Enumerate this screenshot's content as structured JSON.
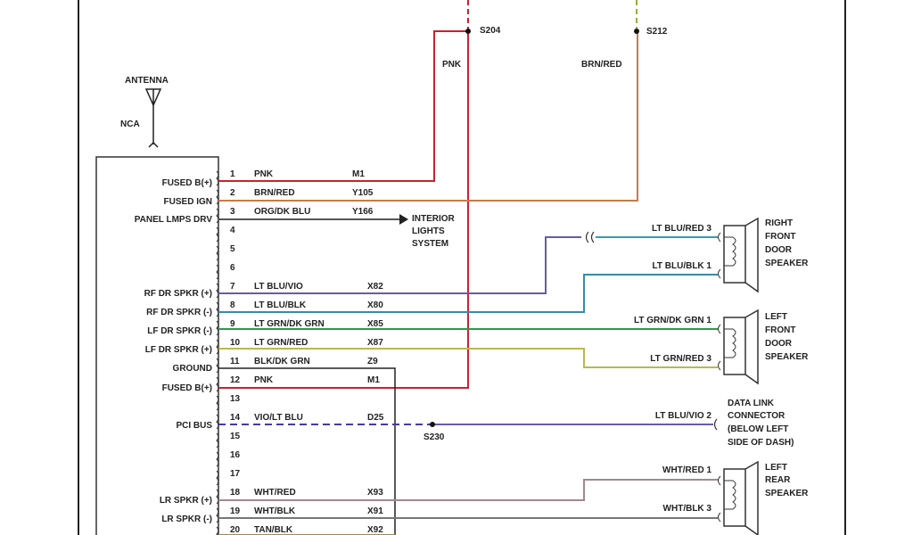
{
  "splices": {
    "s204": "S204",
    "s212": "S212",
    "s230": "S230"
  },
  "riser_labels": {
    "pnk": "PNK",
    "brn_red": "BRN/RED"
  },
  "antenna": {
    "label": "ANTENNA",
    "sub": "NCA"
  },
  "functions": {
    "p1": "FUSED B(+)",
    "p2": "FUSED IGN",
    "p3": "PANEL LMPS DRV",
    "p7": "RF DR SPKR (+)",
    "p8": "RF DR SPKR (-)",
    "p9": "LF DR SPKR (-)",
    "p10": "LF DR SPKR (+)",
    "p11": "GROUND",
    "p12": "FUSED B(+)",
    "p14": "PCI BUS",
    "p18": "LR SPKR (+)",
    "p19": "LR SPKR (-)"
  },
  "pins": [
    {
      "num": "1",
      "color": "PNK",
      "circuit": "M1"
    },
    {
      "num": "2",
      "color": "BRN/RED",
      "circuit": "Y105"
    },
    {
      "num": "3",
      "color": "ORG/DK BLU",
      "circuit": "Y166"
    },
    {
      "num": "4",
      "color": "",
      "circuit": ""
    },
    {
      "num": "5",
      "color": "",
      "circuit": ""
    },
    {
      "num": "6",
      "color": "",
      "circuit": ""
    },
    {
      "num": "7",
      "color": "LT BLU/VIO",
      "circuit": "X82"
    },
    {
      "num": "8",
      "color": "LT BLU/BLK",
      "circuit": "X80"
    },
    {
      "num": "9",
      "color": "LT GRN/DK GRN",
      "circuit": "X85"
    },
    {
      "num": "10",
      "color": "LT GRN/RED",
      "circuit": "X87"
    },
    {
      "num": "11",
      "color": "BLK/DK GRN",
      "circuit": "Z9"
    },
    {
      "num": "12",
      "color": "PNK",
      "circuit": "M1"
    },
    {
      "num": "13",
      "color": "",
      "circuit": ""
    },
    {
      "num": "14",
      "color": "VIO/LT BLU",
      "circuit": "D25"
    },
    {
      "num": "15",
      "color": "",
      "circuit": ""
    },
    {
      "num": "16",
      "color": "",
      "circuit": ""
    },
    {
      "num": "17",
      "color": "",
      "circuit": ""
    },
    {
      "num": "18",
      "color": "WHT/RED",
      "circuit": "X93"
    },
    {
      "num": "19",
      "color": "WHT/BLK",
      "circuit": "X91"
    },
    {
      "num": "20",
      "color": "TAN/BLK",
      "circuit": "X92"
    }
  ],
  "interior_lights": [
    "INTERIOR",
    "LIGHTS",
    "SYSTEM"
  ],
  "right_side": {
    "rf1": "LT BLU/RED 3",
    "rf2": "LT BLU/BLK 1",
    "lf1": "LT GRN/DK GRN 1",
    "lf2": "LT GRN/RED 3",
    "dlc": "LT BLU/VIO 2",
    "lr1": "WHT/RED 1",
    "lr2": "WHT/BLK 3"
  },
  "components": {
    "rf_speaker": [
      "RIGHT",
      "FRONT",
      "DOOR",
      "SPEAKER"
    ],
    "lf_speaker": [
      "LEFT",
      "FRONT",
      "DOOR",
      "SPEAKER"
    ],
    "dlc": [
      "DATA LINK",
      "CONNECTOR",
      "(BELOW LEFT",
      "SIDE OF DASH)"
    ],
    "lr_speaker": [
      "LEFT",
      "REAR",
      "SPEAKER"
    ]
  },
  "colors": {
    "pnk": "#c8232c",
    "brn_red": "#c87a4a",
    "vio": "#6a5aa8",
    "teal": "#3a9ab0",
    "green": "#2f9a4a",
    "yel_grn": "#b8b850",
    "gray": "#888"
  }
}
